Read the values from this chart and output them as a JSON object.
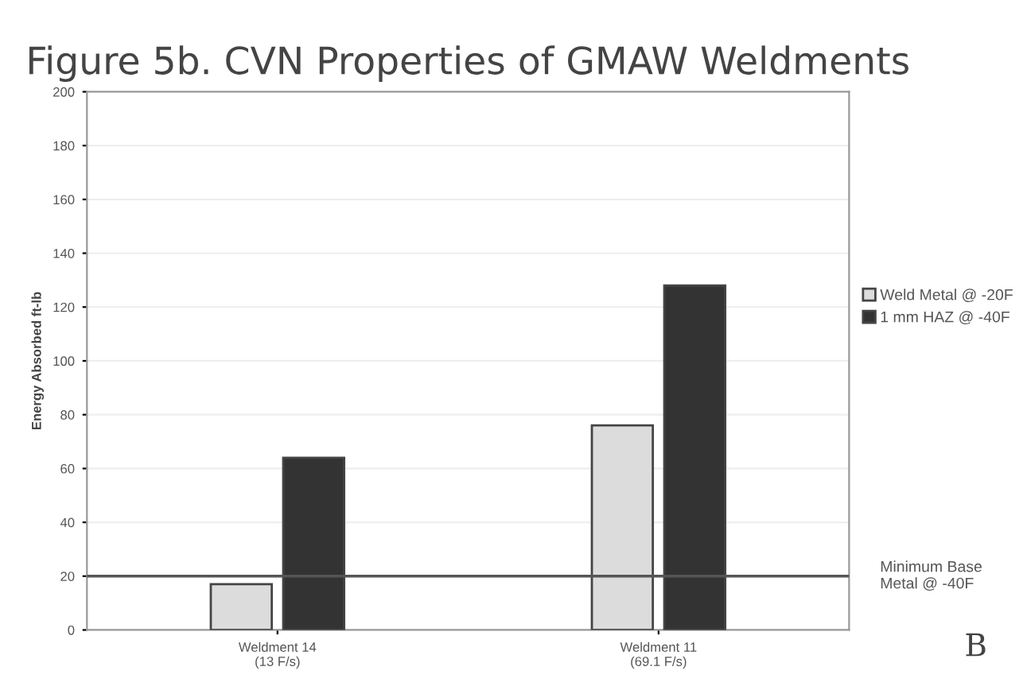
{
  "chart_data": {
    "type": "bar",
    "title": "Figure 5b. CVN Properties of GMAW Weldments",
    "ylabel": "Energy Absorbed ft-lb",
    "categories": [
      "Weldment 14\n(13 F/s)",
      "Weldment 11\n(69.1 F/s)"
    ],
    "series": [
      {
        "name": "Weld Metal @ -20F",
        "color": "#dcdcdc",
        "values": [
          17,
          76
        ]
      },
      {
        "name": "1 mm HAZ @ -40F",
        "color": "#333333",
        "values": [
          64,
          128
        ]
      }
    ],
    "ylim": [
      0,
      200
    ],
    "yticks": [
      0,
      20,
      40,
      60,
      80,
      100,
      120,
      140,
      160,
      180,
      200
    ],
    "grid": "y",
    "legend": "right",
    "ref_lines": [
      {
        "axis": "y",
        "value": 20,
        "label": "Minimum Base\nMetal @ -40F",
        "color": "#555555"
      }
    ],
    "annotations": [
      "B"
    ]
  }
}
